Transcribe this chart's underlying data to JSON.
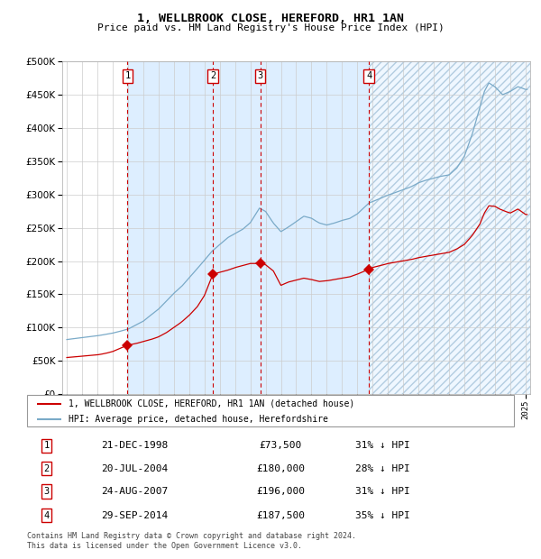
{
  "title": "1, WELLBROOK CLOSE, HEREFORD, HR1 1AN",
  "subtitle": "Price paid vs. HM Land Registry's House Price Index (HPI)",
  "legend_label_red": "1, WELLBROOK CLOSE, HEREFORD, HR1 1AN (detached house)",
  "legend_label_blue": "HPI: Average price, detached house, Herefordshire",
  "footer_line1": "Contains HM Land Registry data © Crown copyright and database right 2024.",
  "footer_line2": "This data is licensed under the Open Government Licence v3.0.",
  "transactions": [
    {
      "num": 1,
      "date": "21-DEC-1998",
      "price": 73500,
      "pct": "31%",
      "x_year": 1998.97
    },
    {
      "num": 2,
      "date": "20-JUL-2004",
      "price": 180000,
      "pct": "28%",
      "x_year": 2004.55
    },
    {
      "num": 3,
      "date": "24-AUG-2007",
      "price": 196000,
      "pct": "31%",
      "x_year": 2007.65
    },
    {
      "num": 4,
      "date": "29-SEP-2014",
      "price": 187500,
      "pct": "35%",
      "x_year": 2014.75
    }
  ],
  "vline_x": [
    1998.97,
    2004.55,
    2007.65,
    2014.75
  ],
  "ylim": [
    0,
    500000
  ],
  "xlim": [
    1994.7,
    2025.3
  ],
  "yticks": [
    0,
    50000,
    100000,
    150000,
    200000,
    250000,
    300000,
    350000,
    400000,
    450000,
    500000
  ],
  "background_color": "#ffffff",
  "plot_bg_color": "#ffffff",
  "grid_color": "#cccccc",
  "shade_color": "#ddeeff",
  "hatch_color": "#c8dcef",
  "red_color": "#cc0000",
  "blue_color": "#7aaac8",
  "vline_color": "#cc0000"
}
